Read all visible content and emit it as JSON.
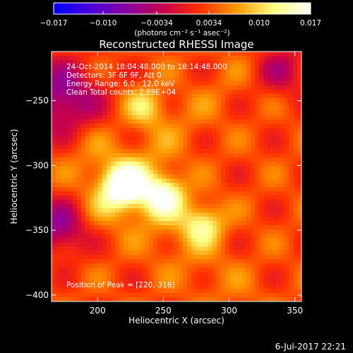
{
  "chart_data": {
    "type": "heatmap",
    "title": "Reconstructed RHESSI Image",
    "xlabel": "Heliocentric X (arcsec)",
    "ylabel": "Heliocentric Y (arcsec)",
    "xlim": [
      165,
      355
    ],
    "ylim": [
      -405,
      -212
    ],
    "xticks": [
      200,
      250,
      300,
      350
    ],
    "yticks": [
      -250,
      -300,
      -350,
      -400
    ],
    "colorbar": {
      "label": "(photons cm⁻² s⁻¹ asec⁻²)",
      "range": [
        -0.017,
        0.017
      ],
      "ticks": [
        "−0.017",
        "−0.010",
        "−0.0034",
        "0.0034",
        "0.010",
        "0.017"
      ],
      "colormap": [
        "#0000ff",
        "#4a00d8",
        "#8a00a0",
        "#c8004a",
        "#ff3000",
        "#ff9a00",
        "#ffff80",
        "#ffffff"
      ]
    },
    "annotations": [
      "24-Oct-2014 18:04:48.000 to 18:14:48.000",
      "Detectors: 3F 6F 9F, Att 0",
      "Energy Range: 6.0 - 12.0 keV",
      "Clean     Total counts: 2.69E+04"
    ],
    "peak_label": "Position of Peak = [220,-316]",
    "peaks": [
      {
        "x": 220,
        "y": -316,
        "value": 0.017
      },
      {
        "x": 250,
        "y": -323,
        "value": 0.016
      },
      {
        "x": 280,
        "y": -345,
        "value": 0.013
      },
      {
        "x": 237,
        "y": -255,
        "value": 0.011
      }
    ],
    "footer_date": "6-Jul-2017 22:21"
  }
}
